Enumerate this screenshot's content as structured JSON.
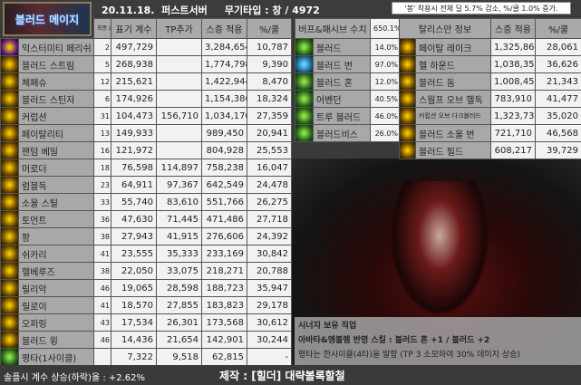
{
  "header": {
    "logo_text": "블러드 메이지",
    "title": "20.11.18.  퍼스트서버     무기타입 : 창 / 4972",
    "notice": "'봉' 착용시 전체 딜 5.7% 감소, %/쿨 1.0% 증가."
  },
  "skills": {
    "headers": [
      "최종 Lv.",
      "표기 계수",
      "TP추가",
      "스증 적용",
      "%/쿨"
    ],
    "rows": [
      [
        "익스터미티 페리쉬",
        "2",
        "497,729",
        "",
        "3,284,654",
        "10,787",
        "pu"
      ],
      [
        "블러드 스트림",
        "5",
        "268,938",
        "",
        "1,774,798",
        "9,390",
        "g"
      ],
      [
        "체페슈",
        "12",
        "215,621",
        "",
        "1,422,944",
        "8,470",
        "g"
      ],
      [
        "블러드 스틴저",
        "6",
        "174,926",
        "",
        "1,154,386",
        "18,324",
        "g"
      ],
      [
        "커럽션",
        "31",
        "104,473",
        "156,710",
        "1,034,170",
        "27,359",
        "g"
      ],
      [
        "페이탈리티",
        "13",
        "149,933",
        "",
        "989,450",
        "20,941",
        "g"
      ],
      [
        "팬텀 베일",
        "16",
        "121,972",
        "",
        "804,928",
        "25,553",
        "g"
      ],
      [
        "머로더",
        "18",
        "76,598",
        "114,897",
        "758,238",
        "16,047",
        "g"
      ],
      [
        "럼블독",
        "23",
        "64,911",
        "97,367",
        "642,549",
        "24,478",
        "g"
      ],
      [
        "소울 스틸",
        "33",
        "55,740",
        "83,610",
        "551,766",
        "26,275",
        "g"
      ],
      [
        "토먼트",
        "36",
        "47,630",
        "71,445",
        "471,486",
        "27,718",
        "g"
      ],
      [
        "팡",
        "38",
        "27,943",
        "41,915",
        "276,606",
        "24,392",
        "g"
      ],
      [
        "쉬카리",
        "41",
        "23,555",
        "35,333",
        "233,169",
        "30,842",
        "g"
      ],
      [
        "헬베루즈",
        "38",
        "22,050",
        "33,075",
        "218,271",
        "20,788",
        "g"
      ],
      [
        "릴리악",
        "46",
        "19,065",
        "28,598",
        "188,723",
        "35,947",
        "g"
      ],
      [
        "릴로이",
        "41",
        "18,570",
        "27,855",
        "183,823",
        "29,178",
        "g"
      ],
      [
        "오퍼링",
        "43",
        "17,534",
        "26,301",
        "173,568",
        "30,612",
        "g"
      ],
      [
        "블러드 윙",
        "46",
        "14,436",
        "21,654",
        "142,901",
        "30,244",
        "g"
      ],
      [
        "평타(1사이클)",
        "",
        "7,322",
        "9,518",
        "62,815",
        "-",
        "gr"
      ]
    ]
  },
  "buffs": {
    "header": "버프&패시브 수치",
    "total": "650.1%",
    "rows": [
      [
        "블러드",
        "14.0%",
        "gr"
      ],
      [
        "블러드 번",
        "97.0%",
        "bl"
      ],
      [
        "블러드 혼",
        "12.0%",
        "gr"
      ],
      [
        "어벤던",
        "40.5%",
        "gr"
      ],
      [
        "트루 블러드",
        "46.0%",
        "gr"
      ],
      [
        "블러드비스",
        "26.0%",
        "gr"
      ]
    ]
  },
  "talisman": {
    "headers": [
      "탈리스만 정보",
      "스증 적용",
      "%/쿨"
    ],
    "rows": [
      [
        "페이탈 레이크",
        "1,325,863",
        "28,061"
      ],
      [
        "헬 하운드",
        "1,038,357",
        "36,626"
      ],
      [
        "블러드 둠",
        "1,008,456",
        "21,343"
      ],
      [
        "스웜프 오브 헬독",
        "783,910",
        "41,477"
      ],
      [
        "커럽션 오브 다크블러드",
        "1,323,738",
        "35,020"
      ],
      [
        "블러드 소울 번",
        "721,710",
        "46,568"
      ],
      [
        "블러드 필드",
        "608,217",
        "39,729"
      ]
    ]
  },
  "synergy": {
    "line1": "시너지 보유 직업",
    "line2": "아바타&엠블렘 반영 스킬 : 블러드 혼 +1 / 블러드 +2",
    "line3": "평타는 한사이클(4타)을 말함 (TP 3 소모하여 30% 데미지 상승)"
  },
  "footer": {
    "left": "솔플시 계수 상승(하락)율 : +2.62%",
    "maker": "제작 : [힐더] 대략볼록할철"
  }
}
